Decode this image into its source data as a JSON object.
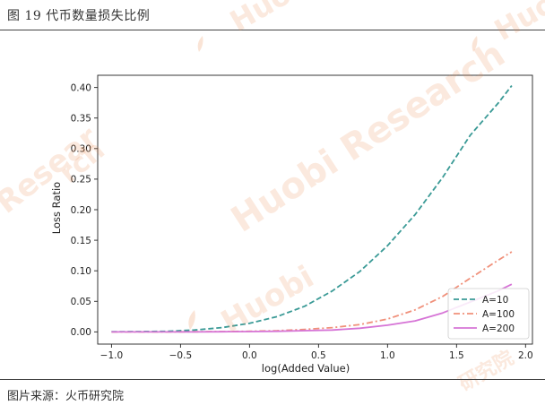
{
  "figure": {
    "title": "图 19 代币数量损失比例",
    "source": "图片来源：火币研究院"
  },
  "watermark": {
    "text": "Huobi Research",
    "brand": "Huobi",
    "short": "Resear",
    "tail": "rch",
    "cn": "研究院",
    "color": "#e88446"
  },
  "chart_data": {
    "type": "line",
    "xlabel": "log(Added Value)",
    "ylabel": "Loss Ratio",
    "xlim": [
      -1.1,
      2.05
    ],
    "ylim": [
      -0.02,
      0.42
    ],
    "xticks": [
      -1.0,
      -0.5,
      0.0,
      0.5,
      1.0,
      1.5,
      2.0
    ],
    "xtick_labels": [
      "−1.0",
      "−0.5",
      "0.0",
      "0.5",
      "1.0",
      "1.5",
      "2.0"
    ],
    "yticks": [
      0.0,
      0.05,
      0.1,
      0.15,
      0.2,
      0.25,
      0.3,
      0.35,
      0.4
    ],
    "ytick_labels": [
      "0.00",
      "0.05",
      "0.10",
      "0.15",
      "0.20",
      "0.25",
      "0.30",
      "0.35",
      "0.40"
    ],
    "legend_position": "bottom-right",
    "grid": false,
    "x": [
      -1.0,
      -0.8,
      -0.6,
      -0.4,
      -0.2,
      0.0,
      0.2,
      0.4,
      0.6,
      0.8,
      1.0,
      1.2,
      1.4,
      1.6,
      1.8,
      1.9
    ],
    "series": [
      {
        "name": "A=10",
        "color": "#3a9a96",
        "dash": "dashed",
        "values": [
          0.0003,
          0.0005,
          0.001,
          0.003,
          0.007,
          0.014,
          0.025,
          0.042,
          0.067,
          0.099,
          0.141,
          0.192,
          0.253,
          0.322,
          0.374,
          0.403
        ]
      },
      {
        "name": "A=100",
        "color": "#f0907a",
        "dash": "dashdot",
        "values": [
          0.0,
          0.0,
          0.0,
          0.0002,
          0.0005,
          0.001,
          0.002,
          0.004,
          0.007,
          0.012,
          0.021,
          0.036,
          0.058,
          0.088,
          0.117,
          0.131
        ]
      },
      {
        "name": "A=200",
        "color": "#d674d6",
        "dash": "solid",
        "values": [
          0.0,
          0.0,
          0.0,
          0.0,
          0.0002,
          0.0005,
          0.001,
          0.002,
          0.003,
          0.006,
          0.011,
          0.018,
          0.031,
          0.049,
          0.067,
          0.078
        ]
      }
    ]
  }
}
